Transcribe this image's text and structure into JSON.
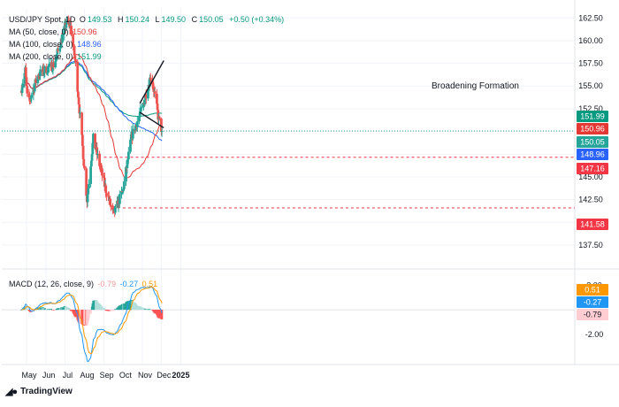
{
  "header": {
    "symbol": "USD/JPY Spot, 1D",
    "ohlc": [
      {
        "k": "O",
        "v": "149.53"
      },
      {
        "k": "H",
        "v": "150.24"
      },
      {
        "k": "L",
        "v": "149.50"
      },
      {
        "k": "C",
        "v": "150.05"
      }
    ],
    "change": "+0.50 (+0.34%)",
    "ma50_label": "MA (50, close, 0)",
    "ma50_value": "150.96",
    "ma100_label": "MA (100, close, 0)",
    "ma100_value": "148.96",
    "ma200_label": "MA (200, close, 0)",
    "ma200_value": "151.99"
  },
  "macd_header": {
    "label": "MACD (12, 26, close, 9)",
    "hist": "-0.79",
    "macd": "-0.27",
    "signal": "0.51"
  },
  "annotation": "Broadening Formation",
  "branding": "TradingView",
  "colors": {
    "up": "#26a69a",
    "down": "#ef5350",
    "ma50": "#e53935",
    "ma100": "#2962ff",
    "ma200": "#089981",
    "macd": "#2196f3",
    "signal": "#ff9800",
    "hline": "#f23645"
  },
  "chart_data": [
    {
      "type": "candlestick",
      "title": "USD/JPY Spot, 1D",
      "x_ticks": [
        "May",
        "Jun",
        "Jul",
        "Aug",
        "Sep",
        "Oct",
        "Nov",
        "Dec",
        "2025"
      ],
      "y_ticks": [
        "162.50",
        "160.00",
        "157.50",
        "155.00",
        "152.50",
        "150.00",
        "147.50",
        "145.00",
        "142.50",
        "140.00",
        "137.50"
      ],
      "ylim": [
        137.0,
        163.5
      ],
      "key_points": [
        {
          "date": "Apr 23",
          "close": 154.8
        },
        {
          "date": "Apr 29",
          "close": 156.7
        },
        {
          "date": "May 3",
          "close": 152.9
        },
        {
          "date": "May 20",
          "close": 156.3
        },
        {
          "date": "Jun 14",
          "close": 157.4
        },
        {
          "date": "Jul 3",
          "close": 161.9
        },
        {
          "date": "Jul 10",
          "close": 161.5
        },
        {
          "date": "Jul 18",
          "close": 157.4
        },
        {
          "date": "Aug 5",
          "close": 142.5
        },
        {
          "date": "Aug 15",
          "close": 149.2
        },
        {
          "date": "Sep 3",
          "close": 143.8
        },
        {
          "date": "Sep 16",
          "close": 140.8
        },
        {
          "date": "Oct 1",
          "close": 143.5
        },
        {
          "date": "Oct 15",
          "close": 149.5
        },
        {
          "date": "Nov 1",
          "close": 152.6
        },
        {
          "date": "Nov 15",
          "close": 156.3
        },
        {
          "date": "Nov 27",
          "close": 151.3
        },
        {
          "date": "Dec 2",
          "close": 150.05
        }
      ],
      "lines": [
        {
          "name": "MA (50, close, 0)",
          "value": 150.96
        },
        {
          "name": "MA (100, close, 0)",
          "value": 148.96
        },
        {
          "name": "MA (200, close, 0)",
          "value": 151.99
        }
      ],
      "price_labels": [
        "151.99",
        "150.96",
        "150.05",
        "148.96",
        "147.16",
        "141.58"
      ],
      "horizontal_levels": [
        147.16,
        141.58
      ],
      "annotations": [
        "Broadening Formation"
      ]
    },
    {
      "type": "line",
      "title": "MACD (12, 26, close, 9)",
      "y_ticks": [
        "2.00",
        "-2.00"
      ],
      "ylim": [
        -3.6,
        2.6
      ],
      "series": [
        {
          "name": "MACD",
          "last": -0.27
        },
        {
          "name": "Signal",
          "last": 0.51
        },
        {
          "name": "Histogram",
          "last": -0.79
        }
      ],
      "value_labels": [
        "0.51",
        "-0.27",
        "-0.79"
      ]
    }
  ]
}
